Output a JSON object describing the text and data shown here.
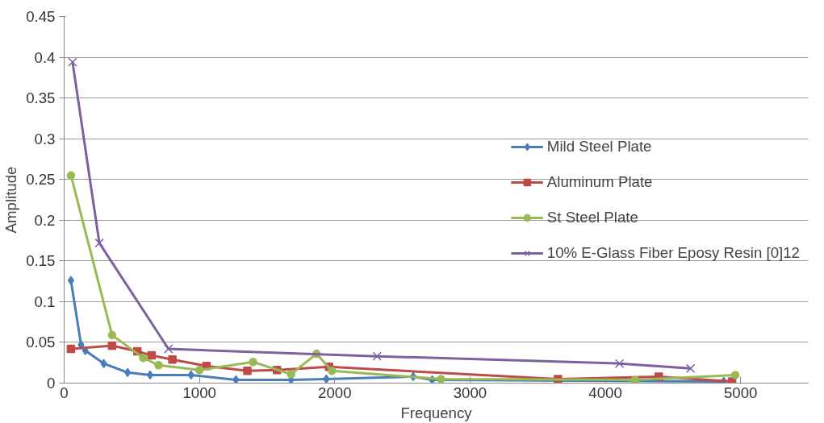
{
  "chart_data": {
    "type": "line",
    "xlabel": "Frequency",
    "ylabel": "Amplitude",
    "xlim": [
      0,
      5500
    ],
    "ylim": [
      0,
      0.45
    ],
    "xticks": [
      0,
      1000,
      2000,
      3000,
      4000,
      5000
    ],
    "yticks": [
      0,
      0.05,
      0.1,
      0.15,
      0.2,
      0.25,
      0.3,
      0.35,
      0.4,
      0.45
    ],
    "grid": "y",
    "legend": "right",
    "line_style": "solid",
    "series": [
      {
        "name": "Mild Steel Plate",
        "color": "#4a7ebb",
        "marker": "diamond",
        "x": [
          50,
          125,
          156,
          293,
          469,
          635,
          938,
          1270,
          1677,
          1938,
          2580,
          2720,
          3260,
          4160,
          4875
        ],
        "values": [
          0.126,
          0.047,
          0.04,
          0.024,
          0.013,
          0.01,
          0.01,
          0.004,
          0.004,
          0.005,
          0.008,
          0.004,
          null,
          null,
          0.002
        ]
      },
      {
        "name": "Aluminum Plate",
        "color": "#be4b48",
        "marker": "square",
        "x": [
          50,
          354,
          541,
          646,
          800,
          1052,
          1354,
          1573,
          1958,
          3650,
          4395,
          4937
        ],
        "values": [
          0.042,
          0.046,
          0.039,
          0.034,
          0.029,
          0.021,
          0.015,
          0.016,
          0.02,
          0.005,
          0.008,
          0.002
        ]
      },
      {
        "name": "St Steel Plate",
        "color": "#98b954",
        "marker": "circle",
        "x": [
          50,
          354,
          584,
          698,
          1000,
          1396,
          1677,
          1865,
          1979,
          2785,
          4220,
          4960
        ],
        "values": [
          0.255,
          0.059,
          0.031,
          0.022,
          0.016,
          0.026,
          0.011,
          0.036,
          0.015,
          0.005,
          0.004,
          0.01
        ]
      },
      {
        "name": "10% E-Glass Fiber Eposy Resin [0]12",
        "color": "#7d60a0",
        "marker": "cross",
        "x": [
          62,
          260,
          771,
          2313,
          4105,
          4630
        ],
        "values": [
          0.394,
          0.172,
          0.042,
          0.033,
          0.024,
          0.018
        ]
      }
    ]
  }
}
